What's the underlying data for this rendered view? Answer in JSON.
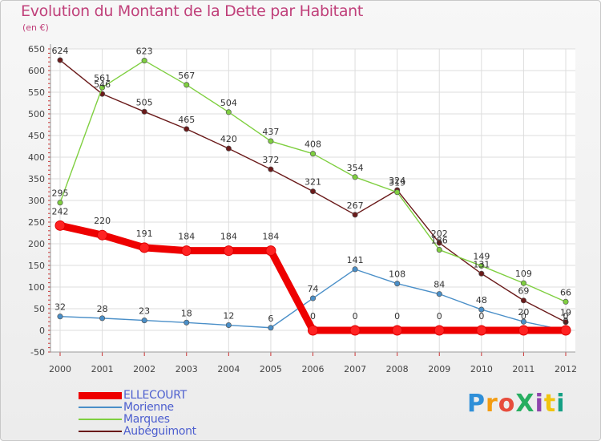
{
  "title": "Evolution du Montant de la Dette par Habitant",
  "subtitle": "(en €)",
  "brand": "ProXiti",
  "chart_data": {
    "type": "line",
    "title": "Evolution du Montant de la Dette par Habitant",
    "subtitle": "(en €)",
    "x": [
      "2000",
      "2001",
      "2002",
      "2003",
      "2004",
      "2005",
      "2006",
      "2007",
      "2008",
      "2009",
      "2010",
      "2011",
      "2012"
    ],
    "ylim": [
      -50,
      650
    ],
    "yticks": [
      -50,
      0,
      50,
      100,
      150,
      200,
      250,
      300,
      350,
      400,
      450,
      500,
      550,
      600,
      650
    ],
    "grid": true,
    "legend": "bottom-left",
    "series": [
      {
        "name": "ELLECOURT",
        "color": "#ee0000",
        "values": [
          242,
          220,
          191,
          184,
          184,
          184,
          0,
          0,
          0,
          0,
          0,
          0,
          0
        ]
      },
      {
        "name": "Morienne",
        "color": "#4a8fc8",
        "values": [
          32,
          28,
          23,
          18,
          12,
          6,
          74,
          141,
          108,
          84,
          48,
          20,
          0
        ]
      },
      {
        "name": "Marques",
        "color": "#7fcf40",
        "values": [
          295,
          561,
          623,
          567,
          504,
          437,
          408,
          354,
          319,
          186,
          149,
          109,
          66
        ]
      },
      {
        "name": "Aubéguimont",
        "color": "#6a1a1a",
        "values": [
          624,
          546,
          505,
          465,
          420,
          372,
          321,
          267,
          324,
          202,
          131,
          69,
          19
        ]
      }
    ]
  }
}
